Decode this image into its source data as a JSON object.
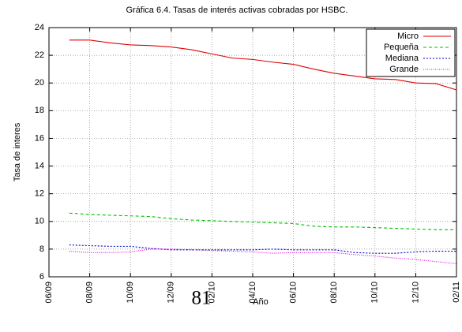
{
  "chart_data": {
    "type": "line",
    "title": "Gráfica 6.4. Tasas de interés activas cobradas por HSBC.",
    "y_label": "Tasa de interes",
    "x_label": "Año",
    "page_number": "81",
    "categories": [
      "06/09",
      null,
      "08/09",
      null,
      "10/09",
      null,
      "12/09",
      null,
      "02/10",
      null,
      "04/10",
      null,
      "06/10",
      null,
      "08/10",
      null,
      "10/10",
      null,
      "12/10",
      null,
      "02/11"
    ],
    "series": [
      {
        "name": "Micro",
        "color": "#e00000",
        "values": [
          null,
          23.1,
          23.1,
          22.9,
          22.75,
          22.7,
          22.6,
          22.4,
          22.1,
          21.8,
          21.7,
          21.5,
          21.35,
          21.0,
          20.7,
          20.5,
          20.3,
          20.25,
          20.0,
          19.95,
          19.5
        ]
      },
      {
        "name": "Pequeña",
        "color": "#00c000",
        "values": [
          null,
          10.6,
          10.5,
          10.45,
          10.4,
          10.35,
          10.2,
          10.1,
          10.05,
          10.0,
          9.95,
          9.9,
          9.85,
          9.65,
          9.6,
          9.6,
          9.55,
          9.5,
          9.45,
          9.4,
          9.4
        ]
      },
      {
        "name": "Mediana",
        "color": "#0000d0",
        "values": [
          null,
          8.3,
          8.25,
          8.2,
          8.2,
          8.05,
          7.95,
          7.95,
          7.95,
          7.95,
          7.95,
          8.0,
          7.95,
          7.95,
          7.95,
          7.75,
          7.7,
          7.7,
          7.8,
          7.85,
          7.85
        ]
      },
      {
        "name": "Grande",
        "color": "#e000e0",
        "values": [
          null,
          7.85,
          7.75,
          7.75,
          7.8,
          8.0,
          8.0,
          7.95,
          7.9,
          7.85,
          7.8,
          7.7,
          7.75,
          7.75,
          7.75,
          7.6,
          7.5,
          7.35,
          7.25,
          7.1,
          6.95
        ]
      }
    ],
    "ylim": [
      6,
      24
    ],
    "yticks": [
      6,
      8,
      10,
      12,
      14,
      16,
      18,
      20,
      22,
      24
    ],
    "grid": true,
    "legend": "top-right"
  }
}
